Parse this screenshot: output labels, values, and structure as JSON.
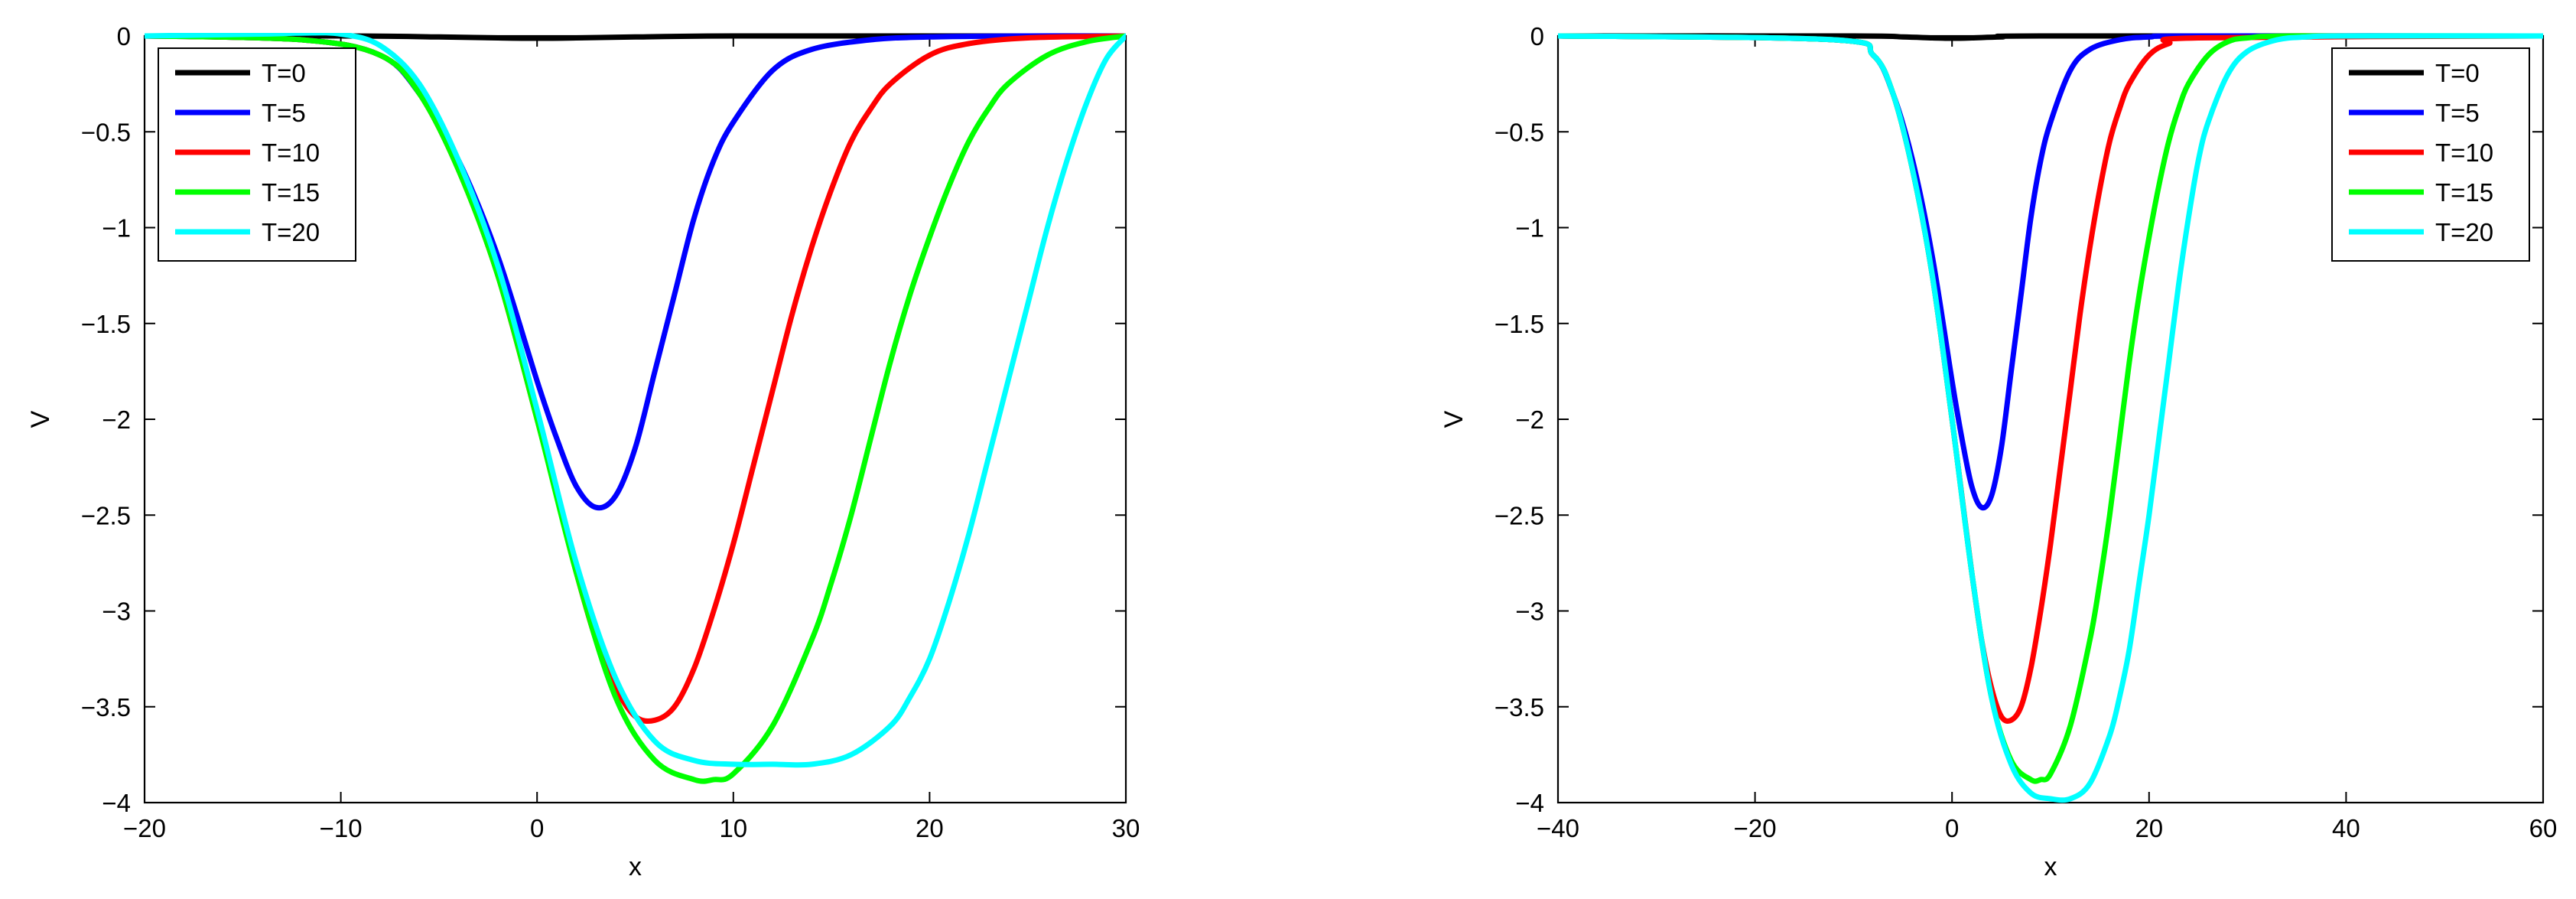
{
  "chart_data": [
    {
      "type": "line",
      "title": "",
      "xlabel": "x",
      "ylabel": "V",
      "xlim": [
        -20,
        30
      ],
      "ylim": [
        -4,
        0
      ],
      "xticks": [
        -20,
        -10,
        0,
        10,
        20,
        30
      ],
      "xtick_labels": [
        "−20",
        "−10",
        "0",
        "10",
        "20",
        "30"
      ],
      "yticks": [
        0,
        -0.5,
        -1,
        -1.5,
        -2,
        -2.5,
        -3,
        -3.5,
        -4
      ],
      "ytick_labels": [
        "0",
        "−0.5",
        "−1",
        "−1.5",
        "−2",
        "−2.5",
        "−3",
        "−3.5",
        "−4"
      ],
      "legend_position": "top-left",
      "series": [
        {
          "name": "T=0",
          "color": "#000000",
          "x": [
            -20,
            -10,
            -5,
            -2,
            0,
            2,
            5,
            10,
            20,
            30
          ],
          "y": [
            0,
            0,
            -0.005,
            -0.01,
            -0.012,
            -0.01,
            -0.005,
            0,
            0,
            0
          ]
        },
        {
          "name": "T=5",
          "color": "#0000ff",
          "x": [
            -20,
            -12,
            -8,
            -6,
            -4,
            -2,
            0,
            1,
            2,
            3,
            4,
            5,
            6,
            7,
            8,
            9,
            10,
            12,
            14,
            17,
            20,
            25,
            30
          ],
          "y": [
            0,
            -0.02,
            -0.1,
            -0.3,
            -0.65,
            -1.15,
            -1.8,
            -2.1,
            -2.35,
            -2.46,
            -2.4,
            -2.15,
            -1.75,
            -1.35,
            -0.95,
            -0.65,
            -0.45,
            -0.18,
            -0.07,
            -0.02,
            -0.005,
            0,
            0
          ]
        },
        {
          "name": "T=10",
          "color": "#ff0000",
          "x": [
            -20,
            -12,
            -8,
            -6,
            -4,
            -2,
            0,
            1,
            2,
            3,
            4,
            5,
            6,
            7,
            8,
            9,
            10,
            11,
            12,
            13,
            14,
            15,
            16,
            17,
            18,
            20,
            22,
            25,
            30
          ],
          "y": [
            0,
            -0.02,
            -0.1,
            -0.3,
            -0.7,
            -1.25,
            -2.0,
            -2.4,
            -2.8,
            -3.15,
            -3.4,
            -3.55,
            -3.57,
            -3.5,
            -3.3,
            -3.0,
            -2.65,
            -2.25,
            -1.85,
            -1.45,
            -1.1,
            -0.8,
            -0.55,
            -0.38,
            -0.25,
            -0.1,
            -0.04,
            -0.01,
            0
          ]
        },
        {
          "name": "T=15",
          "color": "#00ff00",
          "x": [
            -20,
            -12,
            -8,
            -6,
            -4,
            -2,
            0,
            2,
            4,
            6,
            8,
            9,
            10,
            12,
            14,
            15,
            16,
            17,
            18,
            19,
            20,
            21,
            22,
            23,
            24,
            26,
            28,
            30
          ],
          "y": [
            0,
            -0.02,
            -0.1,
            -0.3,
            -0.7,
            -1.25,
            -2.0,
            -2.8,
            -3.45,
            -3.78,
            -3.88,
            -3.88,
            -3.85,
            -3.6,
            -3.15,
            -2.85,
            -2.5,
            -2.1,
            -1.7,
            -1.35,
            -1.05,
            -0.78,
            -0.55,
            -0.38,
            -0.25,
            -0.1,
            -0.03,
            0
          ]
        },
        {
          "name": "T=20",
          "color": "#00ffff",
          "x": [
            -20,
            -14,
            -12,
            -10,
            -8,
            -6,
            -4,
            -2,
            0,
            2,
            4,
            6,
            8,
            10,
            12,
            14,
            16,
            18,
            19,
            20,
            21,
            22,
            23,
            24,
            25,
            26,
            27,
            28,
            29,
            30
          ],
          "y": [
            0,
            0.01,
            0.015,
            0.01,
            -0.05,
            -0.25,
            -0.65,
            -1.2,
            -1.95,
            -2.75,
            -3.35,
            -3.68,
            -3.78,
            -3.8,
            -3.8,
            -3.8,
            -3.75,
            -3.6,
            -3.45,
            -3.25,
            -2.95,
            -2.6,
            -2.2,
            -1.8,
            -1.4,
            -1.0,
            -0.65,
            -0.35,
            -0.12,
            0
          ]
        }
      ]
    },
    {
      "type": "line",
      "title": "",
      "xlabel": "x",
      "ylabel": "V",
      "xlim": [
        -40,
        60
      ],
      "ylim": [
        -4,
        0
      ],
      "xticks": [
        -40,
        -20,
        0,
        20,
        40,
        60
      ],
      "xtick_labels": [
        "−40",
        "−20",
        "0",
        "20",
        "40",
        "60"
      ],
      "yticks": [
        0,
        -0.5,
        -1,
        -1.5,
        -2,
        -2.5,
        -3,
        -3.5,
        -4
      ],
      "ytick_labels": [
        "0",
        "−0.5",
        "−1",
        "−1.5",
        "−2",
        "−2.5",
        "−3",
        "−3.5",
        "−4"
      ],
      "legend_position": "top-right",
      "series": [
        {
          "name": "T=0",
          "color": "#000000",
          "x": [
            -40,
            -10,
            -5,
            -2,
            0,
            2,
            5,
            10,
            60
          ],
          "y": [
            0,
            0,
            -0.005,
            -0.01,
            -0.012,
            -0.01,
            -0.005,
            0,
            0
          ]
        },
        {
          "name": "T=5",
          "color": "#0000ff",
          "x": [
            -40,
            -12,
            -8,
            -6,
            -4,
            -2,
            0,
            1,
            2,
            3,
            4,
            5,
            6,
            7,
            8,
            9,
            10,
            12,
            14,
            17,
            20,
            25,
            60
          ],
          "y": [
            0,
            -0.02,
            -0.1,
            -0.3,
            -0.65,
            -1.15,
            -1.8,
            -2.1,
            -2.35,
            -2.46,
            -2.4,
            -2.15,
            -1.75,
            -1.35,
            -0.95,
            -0.65,
            -0.45,
            -0.18,
            -0.07,
            -0.02,
            -0.005,
            0,
            0
          ]
        },
        {
          "name": "T=10",
          "color": "#ff0000",
          "x": [
            -40,
            -12,
            -8,
            -6,
            -4,
            -2,
            0,
            1,
            2,
            3,
            4,
            5,
            6,
            7,
            8,
            9,
            10,
            11,
            12,
            13,
            14,
            15,
            16,
            17,
            18,
            20,
            22,
            25,
            60
          ],
          "y": [
            0,
            -0.02,
            -0.1,
            -0.3,
            -0.7,
            -1.25,
            -2.0,
            -2.4,
            -2.8,
            -3.15,
            -3.4,
            -3.55,
            -3.57,
            -3.5,
            -3.3,
            -3.0,
            -2.65,
            -2.25,
            -1.85,
            -1.45,
            -1.1,
            -0.8,
            -0.55,
            -0.38,
            -0.25,
            -0.1,
            -0.04,
            -0.01,
            0
          ]
        },
        {
          "name": "T=15",
          "color": "#00ff00",
          "x": [
            -40,
            -12,
            -8,
            -6,
            -4,
            -2,
            0,
            2,
            4,
            6,
            8,
            9,
            10,
            12,
            14,
            15,
            16,
            17,
            18,
            19,
            20,
            21,
            22,
            23,
            24,
            26,
            28,
            30,
            35,
            60
          ],
          "y": [
            0,
            -0.02,
            -0.1,
            -0.3,
            -0.7,
            -1.25,
            -2.0,
            -2.8,
            -3.45,
            -3.78,
            -3.88,
            -3.88,
            -3.85,
            -3.6,
            -3.15,
            -2.85,
            -2.5,
            -2.1,
            -1.7,
            -1.35,
            -1.05,
            -0.78,
            -0.55,
            -0.38,
            -0.25,
            -0.1,
            -0.03,
            -0.01,
            0,
            0
          ]
        },
        {
          "name": "T=20",
          "color": "#00ffff",
          "x": [
            -40,
            -12,
            -8,
            -6,
            -4,
            -2,
            0,
            2,
            4,
            6,
            8,
            10,
            12,
            14,
            16,
            17,
            18,
            19,
            20,
            21,
            22,
            23,
            24,
            25,
            26,
            28,
            30,
            33,
            36,
            40,
            60
          ],
          "y": [
            0,
            -0.02,
            -0.1,
            -0.3,
            -0.7,
            -1.25,
            -2.0,
            -2.8,
            -3.45,
            -3.8,
            -3.95,
            -3.98,
            -3.98,
            -3.9,
            -3.65,
            -3.45,
            -3.2,
            -2.85,
            -2.5,
            -2.1,
            -1.7,
            -1.3,
            -0.95,
            -0.65,
            -0.45,
            -0.2,
            -0.08,
            -0.02,
            -0.005,
            0,
            0
          ]
        }
      ]
    }
  ]
}
